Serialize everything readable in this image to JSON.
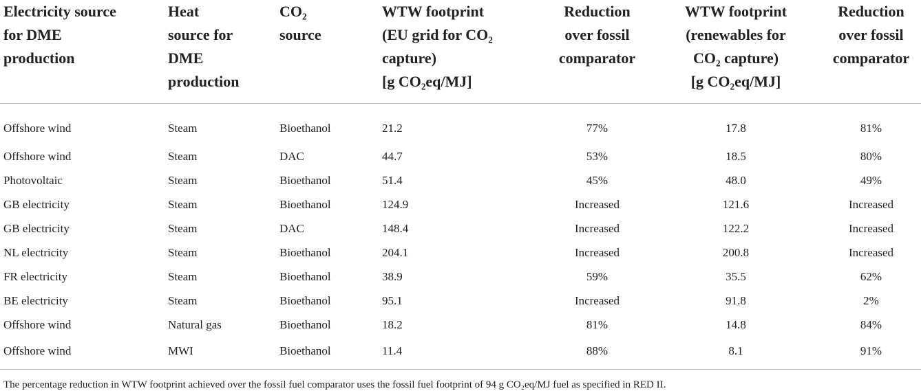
{
  "table": {
    "headers": [
      [
        "Electricity source",
        "for DME",
        "production"
      ],
      [
        "Heat",
        "source for",
        "DME",
        "production"
      ],
      [
        "CO₂",
        "source"
      ],
      [
        "WTW footprint",
        "(EU grid for CO₂",
        "capture)",
        "[g CO₂eq/MJ]"
      ],
      [
        "Reduction",
        "over fossil",
        "comparator"
      ],
      [
        "WTW footprint",
        "(renewables for",
        "CO₂ capture)",
        "[g CO₂eq/MJ]"
      ],
      [
        "Reduction",
        "over fossil",
        "comparator"
      ]
    ],
    "rows": [
      [
        "Offshore wind",
        "Steam",
        "Bioethanol",
        "21.2",
        "77%",
        "17.8",
        "81%"
      ],
      [
        "Offshore wind",
        "Steam",
        "DAC",
        "44.7",
        "53%",
        "18.5",
        "80%"
      ],
      [
        "Photovoltaic",
        "Steam",
        "Bioethanol",
        "51.4",
        "45%",
        "48.0",
        "49%"
      ],
      [
        "GB electricity",
        "Steam",
        "Bioethanol",
        "124.9",
        "Increased",
        "121.6",
        "Increased"
      ],
      [
        "GB electricity",
        "Steam",
        "DAC",
        "148.4",
        "Increased",
        "122.2",
        "Increased"
      ],
      [
        "NL electricity",
        "Steam",
        "Bioethanol",
        "204.1",
        "Increased",
        "200.8",
        "Increased"
      ],
      [
        "FR electricity",
        "Steam",
        "Bioethanol",
        "38.9",
        "59%",
        "35.5",
        "62%"
      ],
      [
        "BE electricity",
        "Steam",
        "Bioethanol",
        "95.1",
        "Increased",
        "91.8",
        "2%"
      ],
      [
        "Offshore wind",
        "Natural gas",
        "Bioethanol",
        "18.2",
        "81%",
        "14.8",
        "84%"
      ],
      [
        "Offshore wind",
        "MWI",
        "Bioethanol",
        "11.4",
        "88%",
        "8.1",
        "91%"
      ]
    ],
    "footnote": "The percentage reduction in WTW footprint achieved over the fossil fuel comparator uses the fossil fuel footprint of 94 g CO₂eq/MJ fuel as specified in RED II."
  }
}
